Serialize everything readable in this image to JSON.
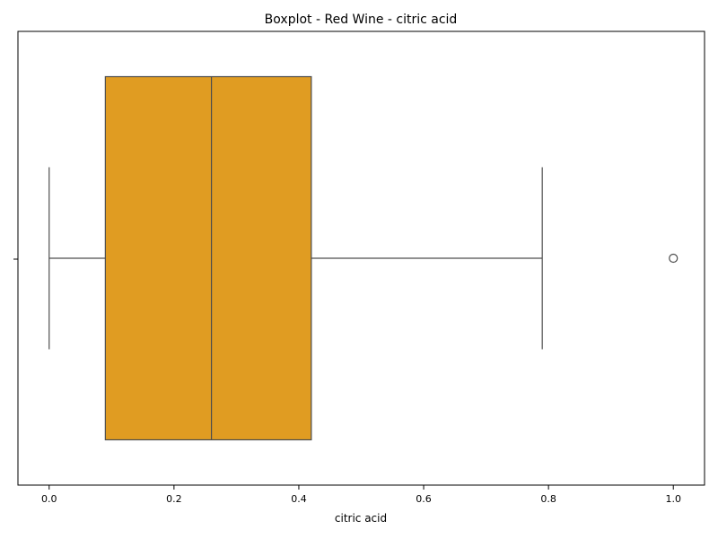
{
  "chart_data": {
    "type": "boxplot",
    "title": "Boxplot - Red Wine - citric acid",
    "xlabel": "citric acid",
    "ylabel": "",
    "orientation": "horizontal",
    "xlim": [
      -0.05,
      1.05
    ],
    "xticks": [
      0.0,
      0.2,
      0.4,
      0.6,
      0.8,
      1.0
    ],
    "xtick_labels": [
      "0.0",
      "0.2",
      "0.4",
      "0.6",
      "0.8",
      "1.0"
    ],
    "grid": false,
    "series": [
      {
        "min": 0.0,
        "q1": 0.09,
        "median": 0.26,
        "q3": 0.42,
        "max": 0.79,
        "outliers": [
          1.0
        ],
        "color": "#e09c22"
      }
    ],
    "colors": {
      "box_fill": "#e09c22",
      "line": "#4d4d4d"
    }
  }
}
